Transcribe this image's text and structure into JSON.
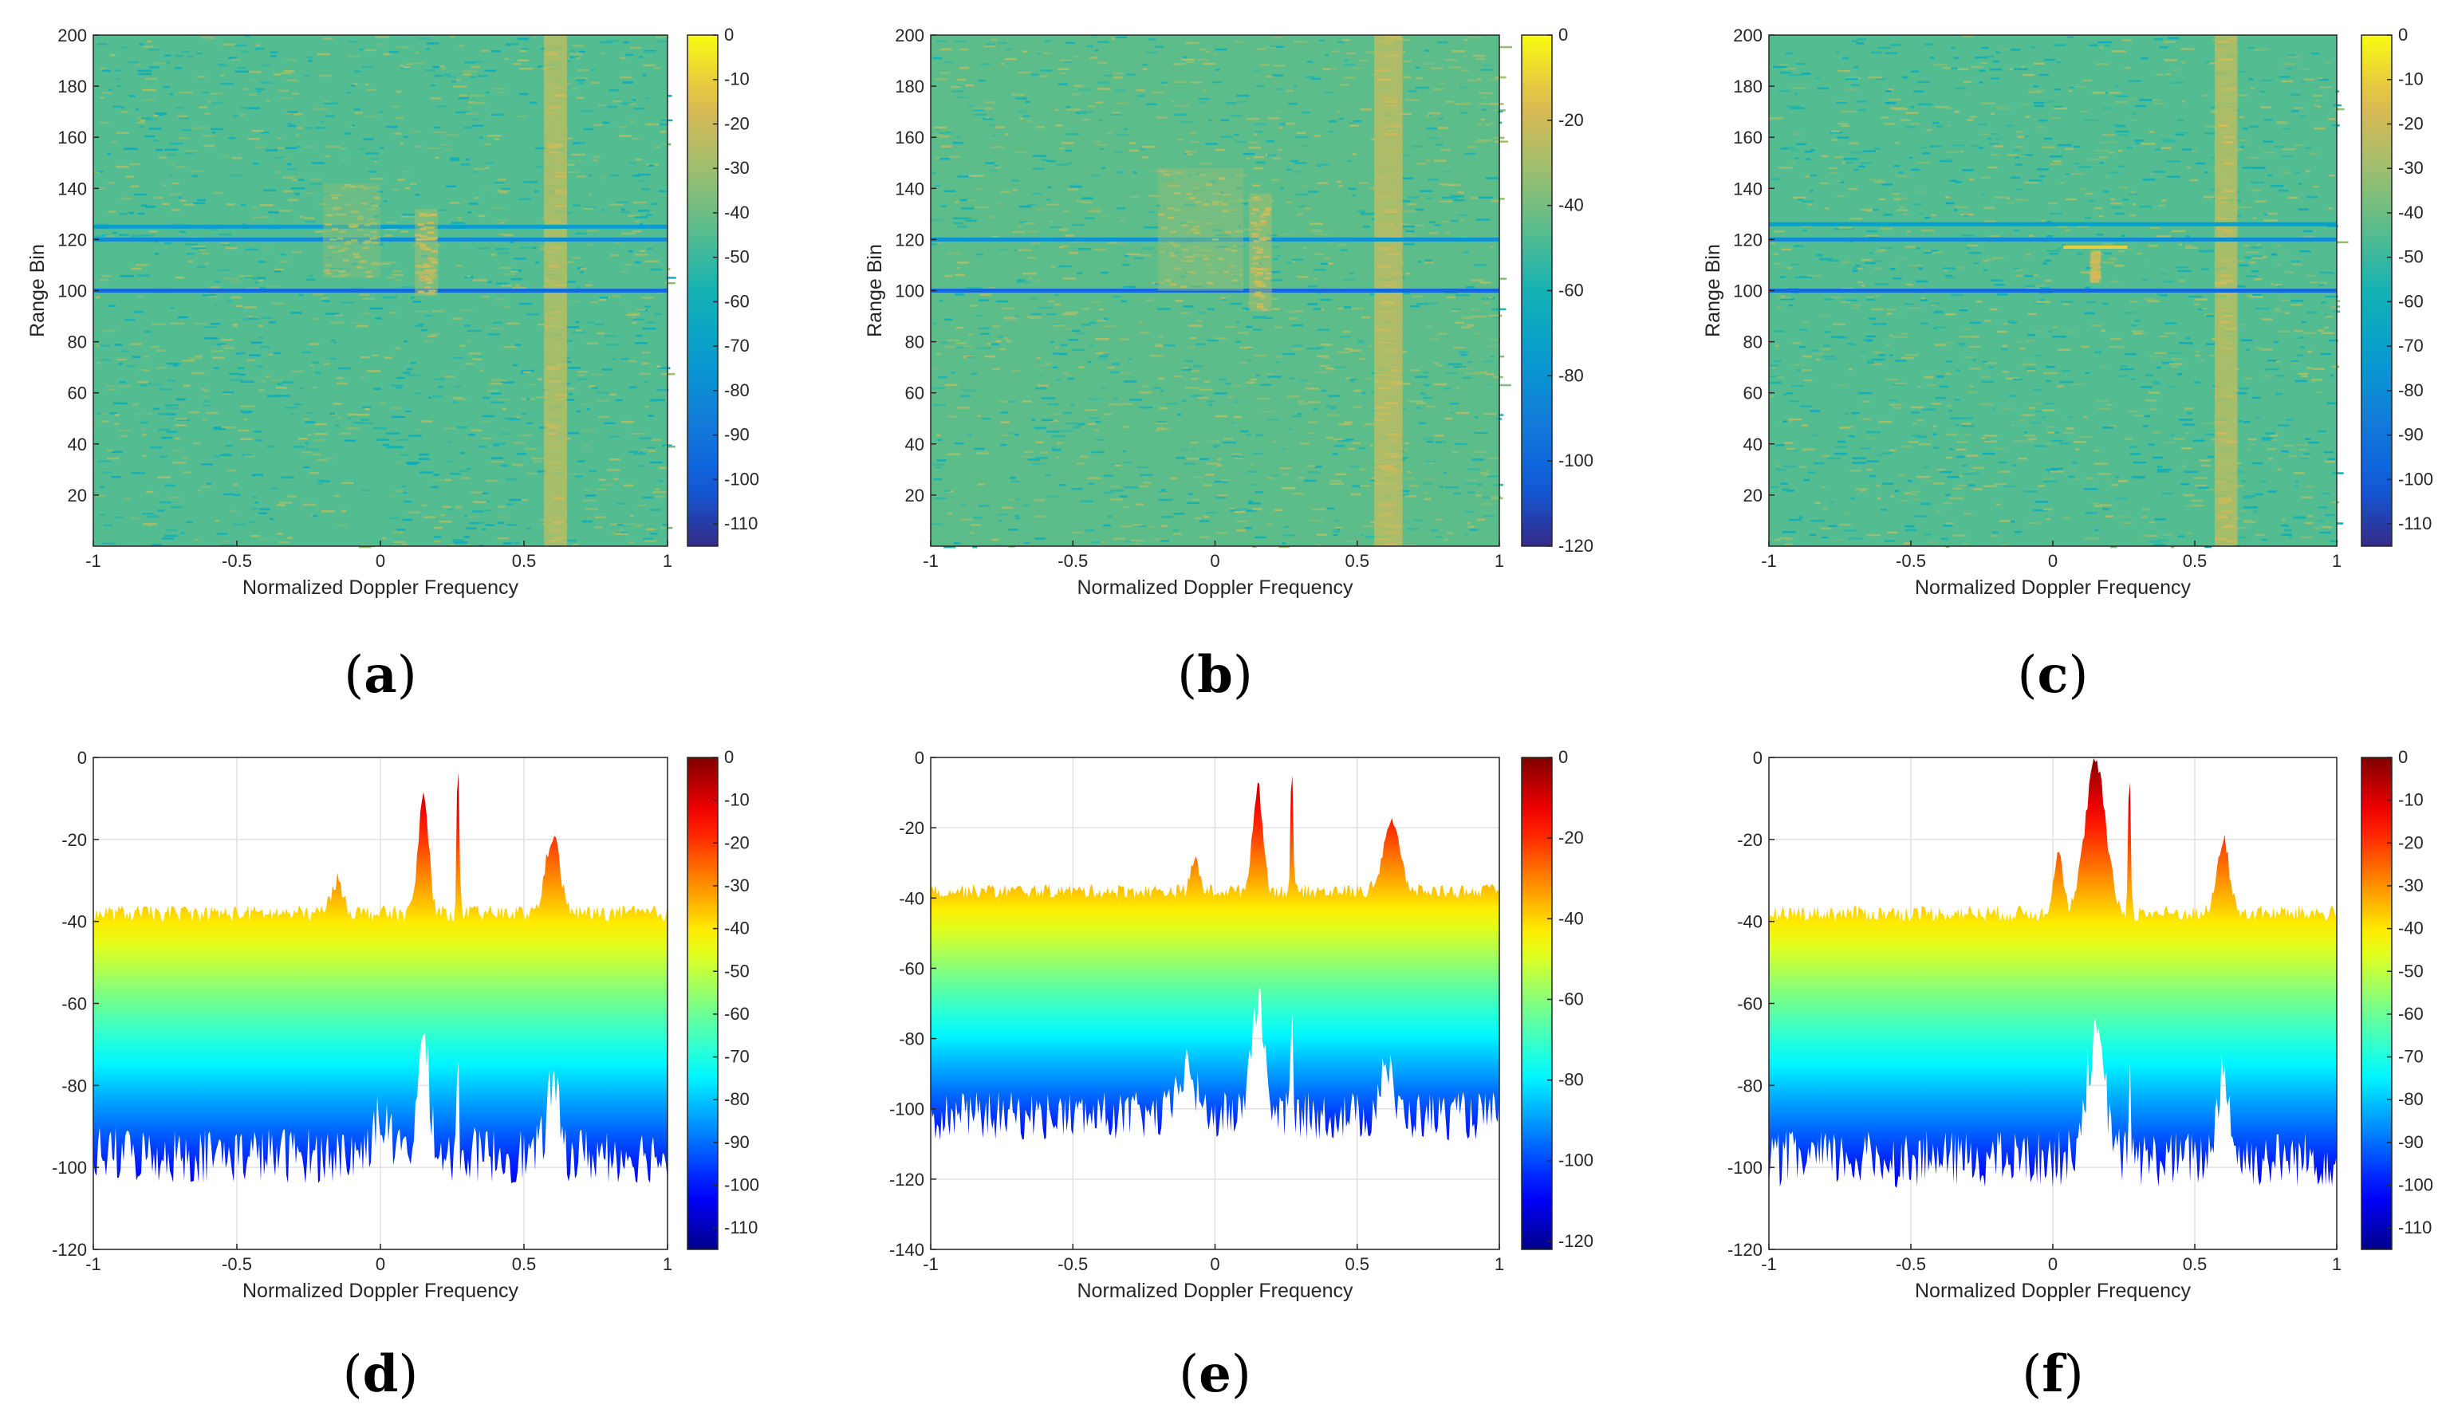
{
  "figure": {
    "title": ""
  },
  "chart_data": [
    {
      "id": "a",
      "type": "heatmap",
      "subplot_label": "a",
      "xlabel": "Normalized Doppler Frequency",
      "ylabel": "Range Bin",
      "xlim": [
        -1,
        1
      ],
      "ylim": [
        0,
        200
      ],
      "xticks": [
        -1,
        -0.5,
        0,
        0.5,
        1
      ],
      "xticklabels": [
        "-1",
        "-0.5",
        "0",
        "0.5",
        "1"
      ],
      "yticks": [
        20,
        40,
        60,
        80,
        100,
        120,
        140,
        160,
        180,
        200
      ],
      "yticklabels": [
        "20",
        "40",
        "60",
        "80",
        "100",
        "120",
        "140",
        "160",
        "180",
        "200"
      ],
      "colorbar": {
        "colormap": "parula",
        "range": [
          -115,
          0
        ],
        "ticks": [
          0,
          -10,
          -20,
          -30,
          -40,
          -50,
          -60,
          -70,
          -80,
          -90,
          -100,
          -110
        ],
        "ticklabels": [
          "0",
          "-10",
          "-20",
          "-30",
          "-40",
          "-50",
          "-60",
          "-70",
          "-80",
          "-90",
          "-100",
          "-110"
        ]
      },
      "background_level_db": -45,
      "features": [
        {
          "kind": "vertical_band",
          "x_center": 0.61,
          "x_width": 0.08,
          "level_db": -25,
          "description": "strong clutter stripe"
        },
        {
          "kind": "horizontal_line",
          "range_bin": 100,
          "level_db": -95
        },
        {
          "kind": "horizontal_line",
          "range_bin": 120,
          "level_db": -80
        },
        {
          "kind": "horizontal_line",
          "range_bin": 125,
          "level_db": -70
        },
        {
          "kind": "block",
          "x": [
            -0.2,
            0.0
          ],
          "range_bins": [
            105,
            142
          ],
          "level_db": -35
        },
        {
          "kind": "block",
          "x": [
            0.12,
            0.2
          ],
          "range_bins": [
            98,
            132
          ],
          "level_db": -28
        }
      ]
    },
    {
      "id": "b",
      "type": "heatmap",
      "subplot_label": "b",
      "xlabel": "Normalized Doppler Frequency",
      "ylabel": "Range Bin",
      "xlim": [
        -1,
        1
      ],
      "ylim": [
        0,
        200
      ],
      "xticks": [
        -1,
        -0.5,
        0,
        0.5,
        1
      ],
      "xticklabels": [
        "-1",
        "-0.5",
        "0",
        "0.5",
        "1"
      ],
      "yticks": [
        20,
        40,
        60,
        80,
        100,
        120,
        140,
        160,
        180,
        200
      ],
      "yticklabels": [
        "20",
        "40",
        "60",
        "80",
        "100",
        "120",
        "140",
        "160",
        "180",
        "200"
      ],
      "colorbar": {
        "colormap": "parula",
        "range": [
          -120,
          0
        ],
        "ticks": [
          0,
          -20,
          -40,
          -60,
          -80,
          -100,
          -120
        ],
        "ticklabels": [
          "0",
          "-20",
          "-40",
          "-60",
          "-80",
          "-100",
          "-120"
        ]
      },
      "background_level_db": -45,
      "features": [
        {
          "kind": "vertical_band",
          "x_center": 0.61,
          "x_width": 0.1,
          "level_db": -25,
          "description": "strong clutter stripe"
        },
        {
          "kind": "horizontal_line",
          "range_bin": 100,
          "level_db": -100
        },
        {
          "kind": "horizontal_line",
          "range_bin": 120,
          "level_db": -80
        },
        {
          "kind": "block",
          "x": [
            -0.2,
            0.1
          ],
          "range_bins": [
            100,
            148
          ],
          "level_db": -35
        },
        {
          "kind": "block",
          "x": [
            0.12,
            0.2
          ],
          "range_bins": [
            92,
            138
          ],
          "level_db": -28
        }
      ]
    },
    {
      "id": "c",
      "type": "heatmap",
      "subplot_label": "c",
      "xlabel": "Normalized Doppler Frequency",
      "ylabel": "Range Bin",
      "xlim": [
        -1,
        1
      ],
      "ylim": [
        0,
        200
      ],
      "xticks": [
        -1,
        -0.5,
        0,
        0.5,
        1
      ],
      "xticklabels": [
        "-1",
        "-0.5",
        "0",
        "0.5",
        "1"
      ],
      "yticks": [
        20,
        40,
        60,
        80,
        100,
        120,
        140,
        160,
        180,
        200
      ],
      "yticklabels": [
        "20",
        "40",
        "60",
        "80",
        "100",
        "120",
        "140",
        "160",
        "180",
        "200"
      ],
      "colorbar": {
        "colormap": "parula",
        "range": [
          -115,
          0
        ],
        "ticks": [
          0,
          -10,
          -20,
          -30,
          -40,
          -50,
          -60,
          -70,
          -80,
          -90,
          -100,
          -110
        ],
        "ticklabels": [
          "0",
          "-10",
          "-20",
          "-30",
          "-40",
          "-50",
          "-60",
          "-70",
          "-80",
          "-90",
          "-100",
          "-110"
        ]
      },
      "background_level_db": -45,
      "features": [
        {
          "kind": "vertical_band",
          "x_center": 0.61,
          "x_width": 0.08,
          "level_db": -25,
          "description": "strong clutter stripe"
        },
        {
          "kind": "horizontal_line",
          "range_bin": 100,
          "level_db": -95
        },
        {
          "kind": "horizontal_line",
          "range_bin": 120,
          "level_db": -80
        },
        {
          "kind": "horizontal_line",
          "range_bin": 126,
          "level_db": -70
        },
        {
          "kind": "point_target",
          "x": 0.15,
          "range_bin": 117,
          "level_db": -10
        },
        {
          "kind": "block",
          "x": [
            0.13,
            0.17
          ],
          "range_bins": [
            103,
            116
          ],
          "level_db": -25
        }
      ]
    },
    {
      "id": "d",
      "type": "area",
      "subplot_label": "d",
      "xlabel": "Normalized Doppler Frequency",
      "ylabel": "",
      "xlim": [
        -1,
        1
      ],
      "ylim": [
        -120,
        0
      ],
      "xticks": [
        -1,
        -0.5,
        0,
        0.5,
        1
      ],
      "xticklabels": [
        "-1",
        "-0.5",
        "0",
        "0.5",
        "1"
      ],
      "yticks": [
        0,
        -20,
        -40,
        -60,
        -80,
        -100,
        -120
      ],
      "yticklabels": [
        "0",
        "-20",
        "-40",
        "-60",
        "-80",
        "-100",
        "-120"
      ],
      "grid": true,
      "colorbar": {
        "colormap": "jet",
        "range": [
          -115,
          0
        ],
        "ticks": [
          0,
          -10,
          -20,
          -30,
          -40,
          -50,
          -60,
          -70,
          -80,
          -90,
          -100,
          -110
        ],
        "ticklabels": [
          "0",
          "-10",
          "-20",
          "-30",
          "-40",
          "-50",
          "-60",
          "-70",
          "-80",
          "-90",
          "-100",
          "-110"
        ]
      },
      "upper_envelope": {
        "baseline_db": -38,
        "peaks": [
          {
            "x": -0.15,
            "width": 0.03,
            "level_db": -30
          },
          {
            "x": 0.15,
            "width": 0.025,
            "level_db": -9
          },
          {
            "x": 0.27,
            "width": 0.006,
            "level_db": 0
          },
          {
            "x": 0.6,
            "width": 0.035,
            "level_db": -19
          }
        ]
      },
      "lower_envelope": {
        "baseline_db": -97,
        "peaks": [
          {
            "x": 0.0,
            "width": 0.04,
            "level_db": -88
          },
          {
            "x": 0.15,
            "width": 0.03,
            "level_db": -70
          },
          {
            "x": 0.27,
            "width": 0.005,
            "level_db": -75
          },
          {
            "x": 0.6,
            "width": 0.03,
            "level_db": -80
          }
        ]
      }
    },
    {
      "id": "e",
      "type": "area",
      "subplot_label": "e",
      "xlabel": "Normalized Doppler Frequency",
      "ylabel": "",
      "xlim": [
        -1,
        1
      ],
      "ylim": [
        -140,
        0
      ],
      "xticks": [
        -1,
        -0.5,
        0,
        0.5,
        1
      ],
      "xticklabels": [
        "-1",
        "-0.5",
        "0",
        "0.5",
        "1"
      ],
      "yticks": [
        0,
        -20,
        -40,
        -60,
        -80,
        -100,
        -120,
        -140
      ],
      "yticklabels": [
        "0",
        "-20",
        "-40",
        "-60",
        "-80",
        "-100",
        "-120",
        "-140"
      ],
      "grid": true,
      "colorbar": {
        "colormap": "jet",
        "range": [
          -122,
          0
        ],
        "ticks": [
          0,
          -20,
          -40,
          -60,
          -80,
          -100,
          -120
        ],
        "ticklabels": [
          "0",
          "-20",
          "-40",
          "-60",
          "-80",
          "-100",
          "-120"
        ]
      },
      "upper_envelope": {
        "baseline_db": -38,
        "peaks": [
          {
            "x": -0.07,
            "width": 0.02,
            "level_db": -29
          },
          {
            "x": 0.15,
            "width": 0.025,
            "level_db": -8
          },
          {
            "x": 0.27,
            "width": 0.006,
            "level_db": 0
          },
          {
            "x": 0.62,
            "width": 0.04,
            "level_db": -18
          }
        ]
      },
      "lower_envelope": {
        "baseline_db": -102,
        "peaks": [
          {
            "x": -0.1,
            "width": 0.04,
            "level_db": -88
          },
          {
            "x": 0.15,
            "width": 0.035,
            "level_db": -70
          },
          {
            "x": 0.27,
            "width": 0.006,
            "level_db": -72
          },
          {
            "x": 0.6,
            "width": 0.03,
            "level_db": -87
          }
        ]
      }
    },
    {
      "id": "f",
      "type": "area",
      "subplot_label": "f",
      "xlabel": "Normalized Doppler Frequency",
      "ylabel": "",
      "xlim": [
        -1,
        1
      ],
      "ylim": [
        -120,
        0
      ],
      "xticks": [
        -1,
        -0.5,
        0,
        0.5,
        1
      ],
      "xticklabels": [
        "-1",
        "-0.5",
        "0",
        "0.5",
        "1"
      ],
      "yticks": [
        0,
        -20,
        -40,
        -60,
        -80,
        -100,
        -120
      ],
      "yticklabels": [
        "0",
        "-20",
        "-40",
        "-60",
        "-80",
        "-100",
        "-120"
      ],
      "grid": true,
      "colorbar": {
        "colormap": "jet",
        "range": [
          -115,
          0
        ],
        "ticks": [
          0,
          -10,
          -20,
          -30,
          -40,
          -50,
          -60,
          -70,
          -80,
          -90,
          -100,
          -110
        ],
        "ticklabels": [
          "0",
          "-10",
          "-20",
          "-30",
          "-40",
          "-50",
          "-60",
          "-70",
          "-80",
          "-90",
          "-100",
          "-110"
        ]
      },
      "upper_envelope": {
        "baseline_db": -38,
        "peaks": [
          {
            "x": 0.02,
            "width": 0.025,
            "level_db": -23
          },
          {
            "x": 0.15,
            "width": 0.05,
            "level_db": -1
          },
          {
            "x": 0.27,
            "width": 0.006,
            "level_db": 0
          },
          {
            "x": 0.6,
            "width": 0.03,
            "level_db": -20
          }
        ]
      },
      "lower_envelope": {
        "baseline_db": -98,
        "peaks": [
          {
            "x": 0.15,
            "width": 0.05,
            "level_db": -70
          },
          {
            "x": 0.27,
            "width": 0.006,
            "level_db": -78
          },
          {
            "x": 0.6,
            "width": 0.03,
            "level_db": -76
          }
        ]
      }
    }
  ]
}
